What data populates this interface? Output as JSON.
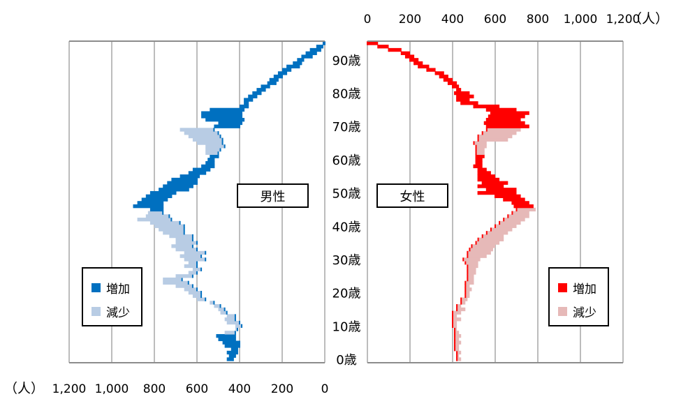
{
  "chart_data": {
    "type": "population-pyramid-change",
    "unit_label": "（人）",
    "panels": [
      {
        "name": "男性",
        "direction": "left",
        "xlim": [
          0,
          1200
        ],
        "ticks": [
          "0",
          "200",
          "400",
          "600",
          "800",
          "1,000",
          "1,200"
        ],
        "tick_values": [
          0,
          200,
          400,
          600,
          800,
          1000,
          1200
        ],
        "legend": [
          "増加",
          "減少"
        ],
        "colors": {
          "base": "#0070C0",
          "increase": "#0070C0",
          "decrease": "#B8CCE4"
        }
      },
      {
        "name": "女性",
        "direction": "right",
        "xlim": [
          0,
          1200
        ],
        "ticks": [
          "0",
          "200",
          "400",
          "600",
          "800",
          "1,000",
          "1,200"
        ],
        "tick_values": [
          0,
          200,
          400,
          600,
          800,
          1000,
          1200
        ],
        "legend": [
          "増加",
          "減少"
        ],
        "colors": {
          "base": "#FF0000",
          "increase": "#FF0000",
          "decrease": "#E6B9B8"
        }
      }
    ],
    "age_labels": [
      "0歳",
      "10歳",
      "20歳",
      "30歳",
      "40歳",
      "50歳",
      "60歳",
      "70歳",
      "80歳",
      "90歳"
    ],
    "age_label_values": [
      0,
      10,
      20,
      30,
      40,
      50,
      60,
      70,
      80,
      90
    ],
    "age_range": [
      0,
      95
    ],
    "male": [
      [
        0,
        430,
        460
      ],
      [
        1,
        420,
        450
      ],
      [
        2,
        410,
        460
      ],
      [
        3,
        410,
        440
      ],
      [
        4,
        400,
        470
      ],
      [
        5,
        400,
        480
      ],
      [
        6,
        420,
        500
      ],
      [
        7,
        420,
        510
      ],
      [
        8,
        420,
        470
      ],
      [
        9,
        410,
        420
      ],
      [
        10,
        390,
        420
      ],
      [
        11,
        400,
        460
      ],
      [
        12,
        420,
        470
      ],
      [
        13,
        420,
        460
      ],
      [
        14,
        460,
        490
      ],
      [
        15,
        470,
        500
      ],
      [
        16,
        490,
        520
      ],
      [
        17,
        520,
        540
      ],
      [
        18,
        560,
        600
      ],
      [
        19,
        580,
        620
      ],
      [
        20,
        580,
        640
      ],
      [
        21,
        600,
        660
      ],
      [
        22,
        620,
        700
      ],
      [
        23,
        640,
        760
      ],
      [
        24,
        670,
        760
      ],
      [
        25,
        620,
        700
      ],
      [
        26,
        600,
        640
      ],
      [
        27,
        580,
        620
      ],
      [
        28,
        600,
        660
      ],
      [
        29,
        600,
        640
      ],
      [
        30,
        560,
        660
      ],
      [
        31,
        580,
        680
      ],
      [
        32,
        560,
        660
      ],
      [
        33,
        600,
        700
      ],
      [
        34,
        620,
        720
      ],
      [
        35,
        600,
        700
      ],
      [
        36,
        620,
        700
      ],
      [
        37,
        620,
        730
      ],
      [
        38,
        660,
        760
      ],
      [
        39,
        660,
        780
      ],
      [
        40,
        660,
        800
      ],
      [
        41,
        680,
        820
      ],
      [
        42,
        720,
        880
      ],
      [
        43,
        730,
        840
      ],
      [
        44,
        760,
        830
      ],
      [
        45,
        760,
        820
      ],
      [
        46,
        760,
        900
      ],
      [
        47,
        760,
        880
      ],
      [
        48,
        740,
        860
      ],
      [
        49,
        720,
        840
      ],
      [
        50,
        700,
        820
      ],
      [
        51,
        640,
        780
      ],
      [
        52,
        620,
        760
      ],
      [
        53,
        600,
        740
      ],
      [
        54,
        600,
        720
      ],
      [
        55,
        590,
        680
      ],
      [
        56,
        560,
        640
      ],
      [
        57,
        540,
        620
      ],
      [
        58,
        520,
        580
      ],
      [
        59,
        520,
        560
      ],
      [
        60,
        520,
        550
      ],
      [
        61,
        500,
        540
      ],
      [
        62,
        500,
        560
      ],
      [
        63,
        490,
        560
      ],
      [
        64,
        470,
        560
      ],
      [
        65,
        480,
        600
      ],
      [
        66,
        480,
        620
      ],
      [
        67,
        490,
        640
      ],
      [
        68,
        500,
        660
      ],
      [
        69,
        520,
        680
      ],
      [
        70,
        400,
        520
      ],
      [
        71,
        390,
        500
      ],
      [
        72,
        380,
        560
      ],
      [
        73,
        390,
        580
      ],
      [
        74,
        390,
        580
      ],
      [
        75,
        380,
        540
      ],
      [
        76,
        360,
        400
      ],
      [
        77,
        360,
        380
      ],
      [
        78,
        340,
        380
      ],
      [
        79,
        320,
        360
      ],
      [
        80,
        300,
        340
      ],
      [
        81,
        280,
        320
      ],
      [
        82,
        260,
        300
      ],
      [
        83,
        230,
        270
      ],
      [
        84,
        220,
        260
      ],
      [
        85,
        200,
        240
      ],
      [
        86,
        180,
        220
      ],
      [
        87,
        160,
        200
      ],
      [
        88,
        120,
        180
      ],
      [
        89,
        110,
        150
      ],
      [
        90,
        100,
        130
      ],
      [
        91,
        60,
        110
      ],
      [
        92,
        40,
        90
      ],
      [
        93,
        20,
        70
      ],
      [
        94,
        10,
        40
      ],
      [
        95,
        0,
        10
      ]
    ],
    "female": [
      [
        0,
        420,
        440
      ],
      [
        1,
        420,
        430
      ],
      [
        2,
        420,
        440
      ],
      [
        3,
        410,
        430
      ],
      [
        4,
        410,
        430
      ],
      [
        5,
        410,
        440
      ],
      [
        6,
        410,
        430
      ],
      [
        7,
        410,
        440
      ],
      [
        8,
        410,
        430
      ],
      [
        9,
        410,
        420
      ],
      [
        10,
        400,
        420
      ],
      [
        11,
        400,
        420
      ],
      [
        12,
        400,
        440
      ],
      [
        13,
        400,
        420
      ],
      [
        14,
        400,
        440
      ],
      [
        15,
        420,
        460
      ],
      [
        16,
        420,
        440
      ],
      [
        17,
        440,
        460
      ],
      [
        18,
        440,
        470
      ],
      [
        19,
        460,
        480
      ],
      [
        20,
        460,
        480
      ],
      [
        21,
        460,
        490
      ],
      [
        22,
        460,
        480
      ],
      [
        23,
        460,
        500
      ],
      [
        24,
        470,
        500
      ],
      [
        25,
        470,
        500
      ],
      [
        26,
        470,
        510
      ],
      [
        27,
        470,
        510
      ],
      [
        28,
        470,
        520
      ],
      [
        29,
        460,
        520
      ],
      [
        30,
        450,
        530
      ],
      [
        31,
        470,
        560
      ],
      [
        32,
        470,
        580
      ],
      [
        33,
        480,
        590
      ],
      [
        34,
        490,
        600
      ],
      [
        35,
        510,
        620
      ],
      [
        36,
        520,
        640
      ],
      [
        37,
        540,
        640
      ],
      [
        38,
        560,
        660
      ],
      [
        39,
        580,
        680
      ],
      [
        40,
        600,
        700
      ],
      [
        41,
        620,
        720
      ],
      [
        42,
        640,
        740
      ],
      [
        43,
        660,
        760
      ],
      [
        44,
        680,
        760
      ],
      [
        45,
        700,
        790
      ],
      [
        46,
        690,
        780
      ],
      [
        47,
        680,
        760
      ],
      [
        48,
        640,
        740
      ],
      [
        49,
        600,
        720
      ],
      [
        50,
        520,
        700
      ],
      [
        51,
        560,
        700
      ],
      [
        52,
        520,
        640
      ],
      [
        53,
        540,
        660
      ],
      [
        54,
        520,
        620
      ],
      [
        55,
        520,
        600
      ],
      [
        56,
        520,
        580
      ],
      [
        57,
        520,
        560
      ],
      [
        58,
        500,
        540
      ],
      [
        59,
        510,
        540
      ],
      [
        60,
        510,
        540
      ],
      [
        61,
        510,
        550
      ],
      [
        62,
        510,
        550
      ],
      [
        63,
        510,
        550
      ],
      [
        64,
        510,
        560
      ],
      [
        65,
        500,
        560
      ],
      [
        66,
        520,
        660
      ],
      [
        67,
        520,
        680
      ],
      [
        68,
        540,
        700
      ],
      [
        69,
        560,
        720
      ],
      [
        70,
        560,
        760
      ],
      [
        71,
        550,
        740
      ],
      [
        72,
        560,
        720
      ],
      [
        73,
        570,
        740
      ],
      [
        74,
        580,
        760
      ],
      [
        75,
        560,
        700
      ],
      [
        76,
        500,
        620
      ],
      [
        77,
        440,
        520
      ],
      [
        78,
        420,
        480
      ],
      [
        79,
        420,
        500
      ],
      [
        80,
        410,
        480
      ],
      [
        81,
        420,
        440
      ],
      [
        82,
        400,
        430
      ],
      [
        83,
        380,
        420
      ],
      [
        84,
        360,
        400
      ],
      [
        85,
        340,
        380
      ],
      [
        86,
        320,
        360
      ],
      [
        87,
        280,
        320
      ],
      [
        88,
        240,
        290
      ],
      [
        89,
        220,
        260
      ],
      [
        90,
        200,
        240
      ],
      [
        91,
        180,
        220
      ],
      [
        92,
        160,
        200
      ],
      [
        93,
        100,
        160
      ],
      [
        94,
        50,
        100
      ],
      [
        95,
        0,
        50
      ]
    ]
  }
}
